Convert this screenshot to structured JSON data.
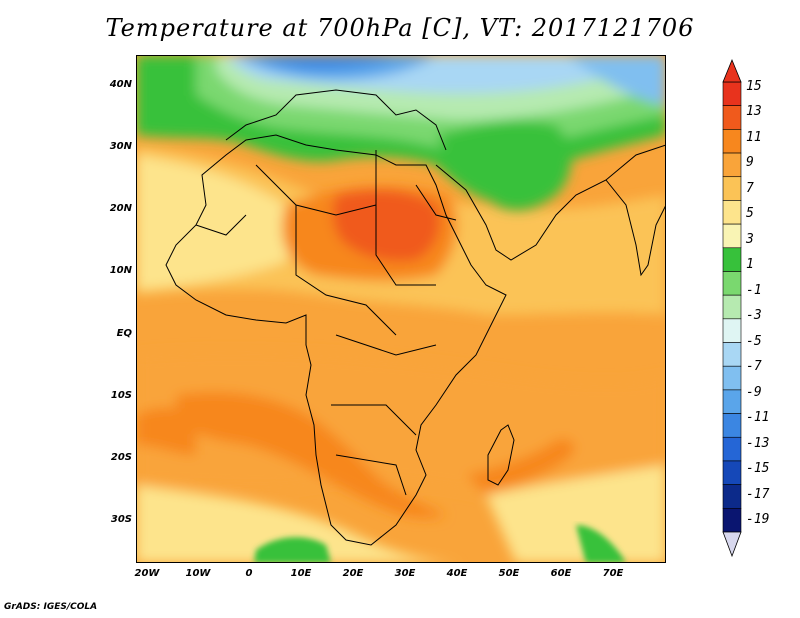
{
  "title": "Temperature at 700hPa [C], VT: 2017121706",
  "credit": "GrADS: IGES/COLA",
  "lat_labels": [
    "40N",
    "30N",
    "20N",
    "10N",
    "EQ",
    "10S",
    "20S",
    "30S"
  ],
  "lon_labels": [
    "20W",
    "10W",
    "0",
    "10E",
    "20E",
    "30E",
    "40E",
    "50E",
    "60E",
    "70E"
  ],
  "colorbar": {
    "labels": [
      "15",
      "13",
      "11",
      "9",
      "7",
      "5",
      "3",
      "1",
      "-1",
      "-3",
      "-5",
      "-7",
      "-9",
      "-11",
      "-13",
      "-15",
      "-17",
      "-19"
    ],
    "colors": [
      "#e8331d",
      "#f05a1c",
      "#f7871e",
      "#f9a43a",
      "#fbc356",
      "#fde48c",
      "#f9f4b4",
      "#37c13b",
      "#7ad86f",
      "#b6eab0",
      "#dff5f3",
      "#a9d7f4",
      "#80bff0",
      "#5aa5ea",
      "#3b86e2",
      "#2566d6",
      "#1548b8",
      "#0c2a8a",
      "#0a1570"
    ],
    "top_color": "#e8331d",
    "bottom_color": "#d8d8ee"
  },
  "map": {
    "domain_lon": [
      -22,
      80
    ],
    "domain_lat": [
      -37,
      45
    ],
    "ocean_base_color": "#f9a43a"
  }
}
